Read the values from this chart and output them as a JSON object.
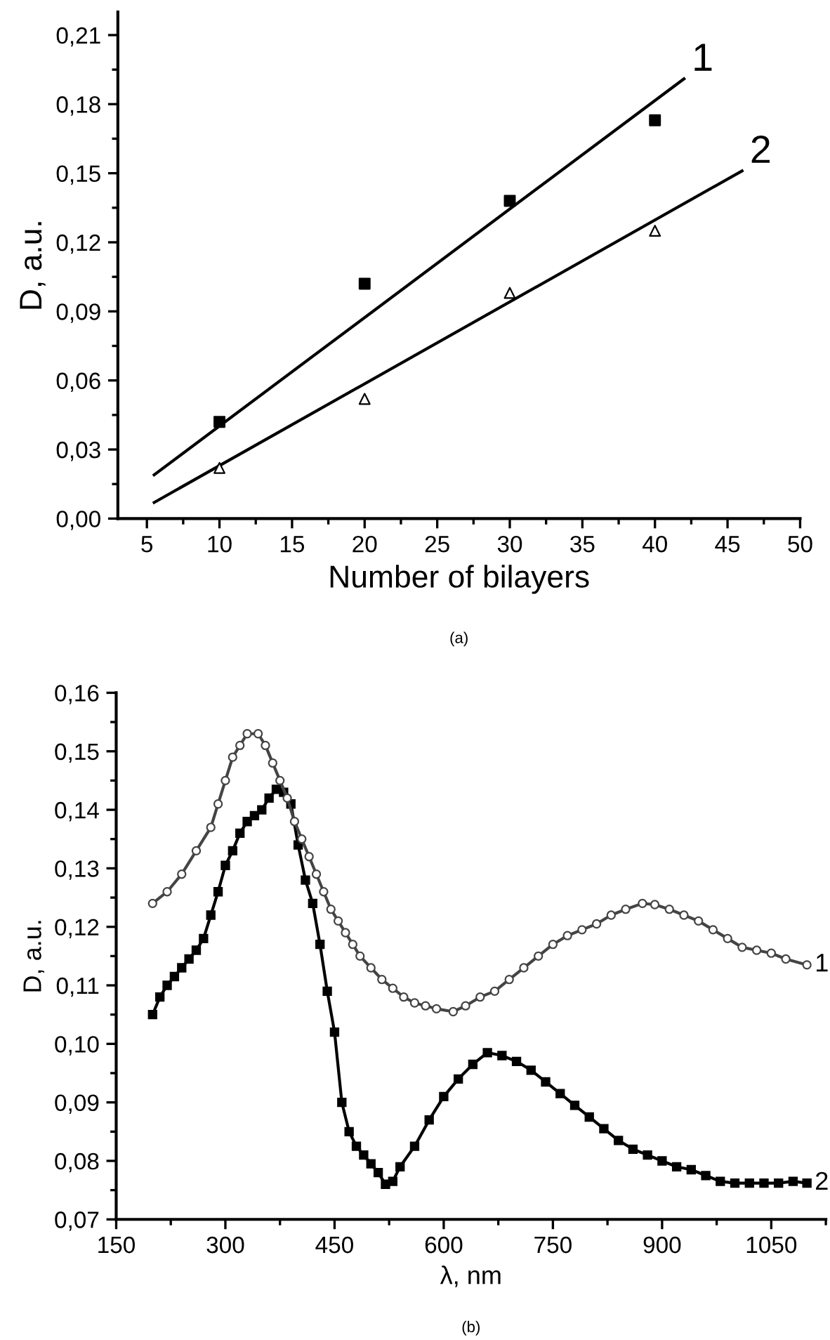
{
  "chart_data": [
    {
      "type": "scatter",
      "xlabel": "Number of bilayers",
      "ylabel": "D, a.u.",
      "xlim": [
        3,
        50
      ],
      "ylim": [
        0,
        0.22
      ],
      "xticks": [
        5,
        10,
        15,
        20,
        25,
        30,
        35,
        40,
        45,
        50
      ],
      "yticks": [
        {
          "value": 0,
          "label": "0,00"
        },
        {
          "value": 0.03,
          "label": "0,03"
        },
        {
          "value": 0.06,
          "label": "0,06"
        },
        {
          "value": 0.09,
          "label": "0,09"
        },
        {
          "value": 0.12,
          "label": "0,12"
        },
        {
          "value": 0.15,
          "label": "0,15"
        },
        {
          "value": 0.18,
          "label": "0,18"
        },
        {
          "value": 0.21,
          "label": "0,21"
        }
      ],
      "grid": false,
      "legend": false,
      "series": [
        {
          "marker": "square",
          "color": "#000000",
          "x": [
            10,
            20,
            30,
            40
          ],
          "values": [
            0.042,
            0.102,
            0.138,
            0.173
          ]
        },
        {
          "marker": "triangle",
          "color": "#000000",
          "x": [
            10,
            20,
            30,
            40
          ],
          "values": [
            0.022,
            0.052,
            0.098,
            0.125
          ]
        },
        {
          "type": "line",
          "marker": "none",
          "color": "#000000",
          "x": [
            5.5,
            42
          ],
          "values": [
            0.019,
            0.191
          ]
        },
        {
          "type": "line",
          "marker": "none",
          "color": "#000000",
          "x": [
            5.5,
            46
          ],
          "values": [
            0.007,
            0.151
          ]
        }
      ],
      "annotations": [
        {
          "text": "1",
          "x": 42,
          "y": 0.191
        },
        {
          "text": "2",
          "x": 46,
          "y": 0.151
        },
        "(a)"
      ]
    },
    {
      "type": "line",
      "xlabel": "λ, nm",
      "ylabel": "D, a.u.",
      "xlim": [
        150,
        1125
      ],
      "ylim": [
        0.07,
        0.16
      ],
      "xticks": [
        150,
        300,
        450,
        600,
        750,
        900,
        1050
      ],
      "yticks": [
        {
          "value": 0.07,
          "label": "0,07"
        },
        {
          "value": 0.08,
          "label": "0,08"
        },
        {
          "value": 0.09,
          "label": "0,09"
        },
        {
          "value": 0.1,
          "label": "0,10"
        },
        {
          "value": 0.11,
          "label": "0,11"
        },
        {
          "value": 0.12,
          "label": "0,12"
        },
        {
          "value": 0.13,
          "label": "0,13"
        },
        {
          "value": 0.14,
          "label": "0,14"
        },
        {
          "value": 0.15,
          "label": "0,15"
        },
        {
          "value": 0.16,
          "label": "0,16"
        }
      ],
      "grid": false,
      "legend": false,
      "line_style": "solid",
      "series": [
        {
          "marker": "circle",
          "color": "#444444",
          "x": [
            200,
            220,
            240,
            260,
            280,
            290,
            300,
            310,
            320,
            330,
            345,
            355,
            365,
            375,
            385,
            395,
            405,
            415,
            425,
            435,
            445,
            455,
            465,
            475,
            485,
            500,
            515,
            530,
            545,
            560,
            575,
            590,
            613,
            630,
            650,
            670,
            690,
            710,
            730,
            750,
            770,
            790,
            810,
            830,
            850,
            873,
            890,
            910,
            930,
            950,
            970,
            990,
            1010,
            1030,
            1050,
            1070,
            1099
          ],
          "values": [
            0.124,
            0.126,
            0.129,
            0.133,
            0.137,
            0.141,
            0.145,
            0.149,
            0.151,
            0.153,
            0.153,
            0.151,
            0.148,
            0.145,
            0.142,
            0.138,
            0.135,
            0.132,
            0.129,
            0.126,
            0.123,
            0.121,
            0.119,
            0.117,
            0.115,
            0.113,
            0.111,
            0.1095,
            0.108,
            0.107,
            0.1065,
            0.106,
            0.1055,
            0.1065,
            0.108,
            0.109,
            0.111,
            0.113,
            0.115,
            0.117,
            0.1185,
            0.1195,
            0.1205,
            0.122,
            0.123,
            0.124,
            0.1238,
            0.123,
            0.122,
            0.121,
            0.1195,
            0.118,
            0.1165,
            0.116,
            0.1155,
            0.1145,
            0.1135
          ]
        },
        {
          "marker": "square",
          "color": "#000000",
          "x": [
            200,
            210,
            220,
            230,
            240,
            250,
            260,
            270,
            280,
            290,
            300,
            310,
            320,
            330,
            340,
            350,
            360,
            370,
            380,
            390,
            400,
            410,
            420,
            430,
            440,
            450,
            460,
            470,
            480,
            490,
            500,
            510,
            520,
            530,
            540,
            560,
            580,
            600,
            620,
            640,
            660,
            680,
            700,
            720,
            740,
            760,
            780,
            800,
            820,
            840,
            860,
            880,
            900,
            920,
            940,
            960,
            980,
            1000,
            1020,
            1040,
            1060,
            1080,
            1099
          ],
          "values": [
            0.105,
            0.108,
            0.11,
            0.1115,
            0.113,
            0.1145,
            0.116,
            0.118,
            0.122,
            0.126,
            0.1305,
            0.133,
            0.136,
            0.138,
            0.139,
            0.14,
            0.142,
            0.1435,
            0.143,
            0.141,
            0.134,
            0.128,
            0.124,
            0.117,
            0.109,
            0.102,
            0.09,
            0.085,
            0.0825,
            0.081,
            0.0795,
            0.078,
            0.076,
            0.0765,
            0.079,
            0.0825,
            0.087,
            0.091,
            0.094,
            0.0965,
            0.0985,
            0.098,
            0.097,
            0.0955,
            0.0935,
            0.0915,
            0.0895,
            0.0875,
            0.0855,
            0.0835,
            0.082,
            0.081,
            0.08,
            0.079,
            0.0785,
            0.0775,
            0.0765,
            0.0762,
            0.0762,
            0.0762,
            0.0762,
            0.0765,
            0.0762
          ]
        }
      ],
      "annotations": [
        {
          "text": "1",
          "x": 1099,
          "y": 0.1135
        },
        {
          "text": "2",
          "x": 1099,
          "y": 0.0762
        },
        "(b)"
      ]
    }
  ]
}
